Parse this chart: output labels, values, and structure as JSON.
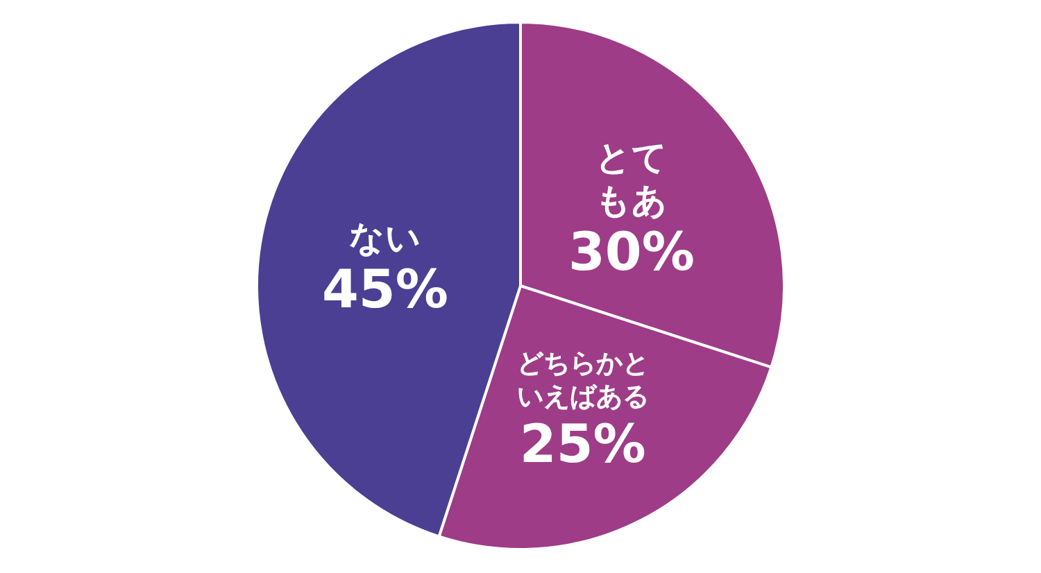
{
  "chart_data": {
    "type": "pie",
    "categories": [
      "とてもある",
      "どちらかといえばある",
      "ない"
    ],
    "values": [
      30,
      25,
      45
    ],
    "colors": [
      "#9e3c87",
      "#9e3c87",
      "#4b3f94"
    ],
    "value_labels": [
      "30%",
      "25%",
      "45%"
    ],
    "legend": false
  }
}
